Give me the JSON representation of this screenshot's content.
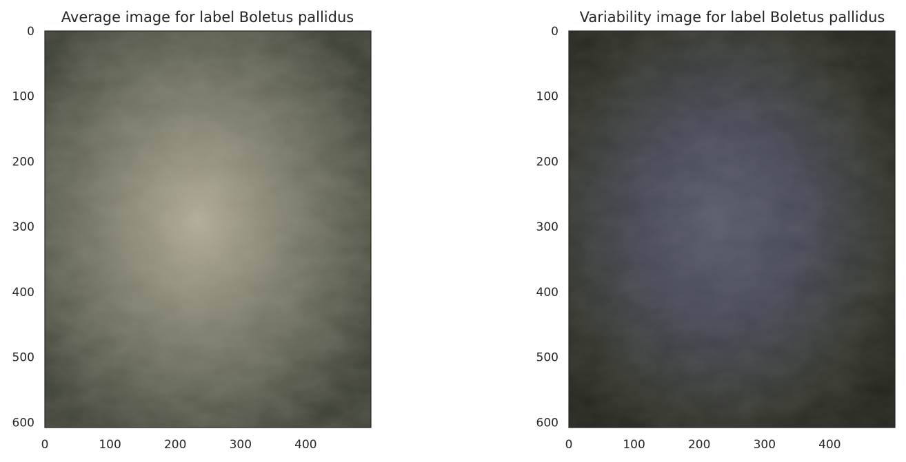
{
  "chart_data": [
    {
      "type": "heatmap",
      "title": "Average image for label Boletus pallidus",
      "xlim": [
        0,
        500
      ],
      "ylim": [
        0,
        608
      ],
      "x_ticks": [
        0,
        100,
        200,
        300,
        400
      ],
      "y_ticks": [
        0,
        100,
        200,
        300,
        400,
        500,
        600
      ],
      "grid": false,
      "colors": {
        "background": "#5b5e4f",
        "center": "#b2ab98",
        "edge": "#3c3f34"
      }
    },
    {
      "type": "heatmap",
      "title": "Variability image for label Boletus pallidus",
      "xlim": [
        0,
        500
      ],
      "ylim": [
        0,
        608
      ],
      "x_ticks": [
        0,
        100,
        200,
        300,
        400
      ],
      "y_ticks": [
        0,
        100,
        200,
        300,
        400,
        500,
        600
      ],
      "grid": false,
      "colors": {
        "background": "#35372f",
        "center": "#585b6a",
        "edge": "#25271f"
      }
    }
  ]
}
